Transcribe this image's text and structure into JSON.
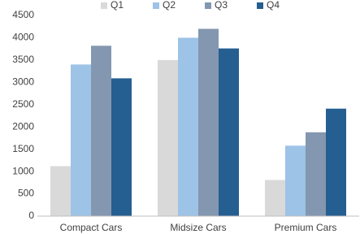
{
  "chart_data": {
    "type": "bar",
    "categories": [
      "Compact Cars",
      "Midsize Cars",
      "Premium Cars"
    ],
    "series": [
      {
        "name": "Q1",
        "color": "#d9d9d9",
        "values": [
          1120,
          3500,
          810
        ]
      },
      {
        "name": "Q2",
        "color": "#9dc3e6",
        "values": [
          3400,
          4000,
          1580
        ]
      },
      {
        "name": "Q3",
        "color": "#8497b0",
        "values": [
          3820,
          4200,
          1880
        ]
      },
      {
        "name": "Q4",
        "color": "#255e91",
        "values": [
          3090,
          3760,
          2410
        ]
      }
    ],
    "ylim": [
      0,
      4500
    ],
    "yticks": [
      0,
      500,
      1000,
      1500,
      2000,
      2500,
      3000,
      3500,
      4000,
      4500
    ],
    "grid": false,
    "legend": "top"
  }
}
